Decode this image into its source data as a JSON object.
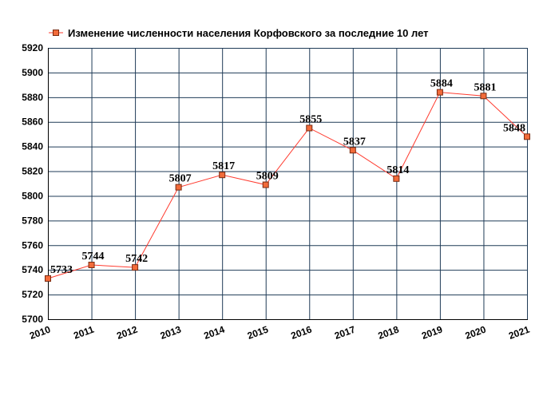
{
  "colors": {
    "line": "#ff3b2f",
    "marker_fill": "#f26b3a",
    "marker_stroke": "#7a2a10",
    "grid": "#1f3b57",
    "axis": "#000000"
  },
  "chart_data": {
    "type": "line",
    "title": "",
    "xlabel": "",
    "ylabel": "",
    "legend": {
      "position": "top-left",
      "entries": [
        "Изменение численности населения Корфовского за последние 10 лет"
      ]
    },
    "grid": true,
    "ylim": [
      5700,
      5920
    ],
    "yticks": [
      5700,
      5720,
      5740,
      5760,
      5780,
      5800,
      5820,
      5840,
      5860,
      5880,
      5900,
      5920
    ],
    "categories": [
      "2010",
      "2011",
      "2012",
      "2013",
      "2014",
      "2015",
      "2016",
      "2017",
      "2018",
      "2019",
      "2020",
      "2021"
    ],
    "series": [
      {
        "name": "Изменение численности населения Корфовского за последние 10 лет",
        "values": [
          5733,
          5744,
          5742,
          5807,
          5817,
          5809,
          5855,
          5837,
          5814,
          5884,
          5881,
          5848
        ]
      }
    ]
  }
}
